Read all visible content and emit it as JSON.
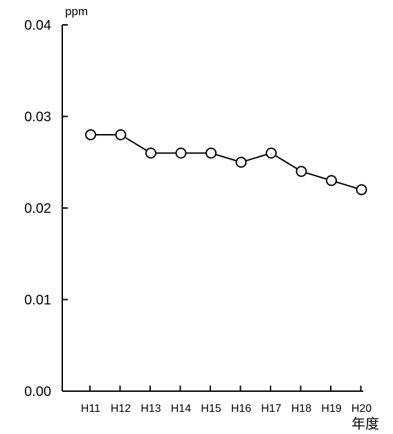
{
  "chart_data": {
    "type": "line",
    "categories": [
      "H11",
      "H12",
      "H13",
      "H14",
      "H15",
      "H16",
      "H17",
      "H18",
      "H19",
      "H20"
    ],
    "series": [
      {
        "values": [
          0.028,
          0.028,
          0.026,
          0.026,
          0.026,
          0.025,
          0.026,
          0.024,
          0.023,
          0.022
        ]
      }
    ],
    "ylim": [
      0,
      0.04
    ],
    "yticks": [
      "0.00",
      "0.01",
      "0.02",
      "0.03",
      "0.04"
    ],
    "ylabel": "ppm",
    "xlabel": "年度",
    "grid": false,
    "line_color": "#000000",
    "marker_fill": "#ffffff"
  }
}
